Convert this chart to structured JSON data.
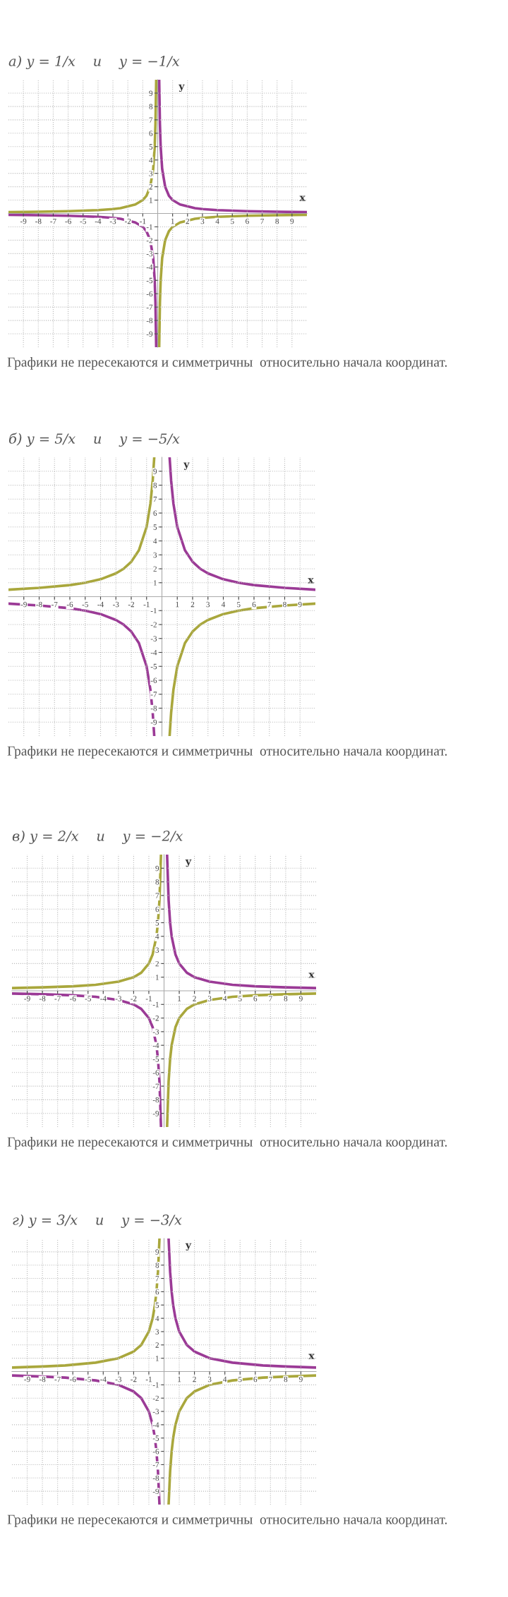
{
  "chart_data": [
    {
      "type": "line",
      "title": "а) y = 1/x    и    y = −1/x",
      "xlabel": "x",
      "ylabel": "y",
      "xlim": [
        -10,
        10
      ],
      "ylim": [
        -10,
        10
      ],
      "xticks": [
        -9,
        -8,
        -7,
        -6,
        -5,
        -4,
        -3,
        -2,
        -1,
        1,
        2,
        3,
        4,
        5,
        6,
        7,
        8,
        9
      ],
      "yticks": [
        -9,
        -8,
        -7,
        -6,
        -5,
        -4,
        -3,
        -2,
        -1,
        1,
        2,
        3,
        4,
        5,
        6,
        7,
        8,
        9
      ],
      "grid": true,
      "line_style": "solid",
      "marker": "none",
      "series": [
        {
          "color": "#9b3a96",
          "x": [
            -10,
            -8,
            -6,
            -4,
            -3,
            -2.5,
            -1.5,
            -1,
            -0.75,
            -0.5,
            -0.3,
            -0.2,
            -0.15,
            -0.1,
            null,
            0.1,
            0.15,
            0.2,
            0.3,
            0.5,
            0.75,
            1,
            1.5,
            2.5,
            3,
            4,
            6,
            8,
            10
          ],
          "values": [
            -0.1,
            -0.13,
            -0.17,
            -0.25,
            -0.33,
            -0.4,
            -0.67,
            -1,
            -1.33,
            -2,
            -3.33,
            -5,
            -6.67,
            -10,
            null,
            10,
            6.67,
            5,
            3.33,
            2,
            1.33,
            1,
            0.67,
            0.4,
            0.33,
            0.25,
            0.17,
            0.13,
            0.1
          ]
        },
        {
          "color": "#a9a73c",
          "x": [
            -10,
            -8,
            -6,
            -4,
            -3,
            -2.5,
            -1.5,
            -1,
            -0.75,
            -0.5,
            -0.3,
            -0.2,
            -0.15,
            -0.1,
            null,
            0.1,
            0.15,
            0.2,
            0.3,
            0.5,
            0.75,
            1,
            1.5,
            2.5,
            3,
            4,
            6,
            8,
            10
          ],
          "values": [
            0.1,
            0.13,
            0.17,
            0.25,
            0.33,
            0.4,
            0.67,
            1,
            1.33,
            2,
            3.33,
            5,
            6.67,
            10,
            null,
            -10,
            -6.67,
            -5,
            -3.33,
            -2,
            -1.33,
            -1,
            -0.67,
            -0.4,
            -0.33,
            -0.25,
            -0.17,
            -0.13,
            -0.1
          ]
        }
      ],
      "annotations": [
        "Графики не пересекаются и симметричны  относительно начала координат."
      ]
    },
    {
      "type": "line",
      "title": "б) y = 5/x    и    y = −5/x",
      "xlabel": "x",
      "ylabel": "y",
      "xlim": [
        -10,
        10
      ],
      "ylim": [
        -10,
        10
      ],
      "xticks": [
        -9,
        -8,
        -7,
        -6,
        -5,
        -4,
        -3,
        -2,
        -1,
        1,
        2,
        3,
        4,
        5,
        6,
        7,
        8,
        9
      ],
      "yticks": [
        -9,
        -8,
        -7,
        -6,
        -5,
        -4,
        -3,
        -2,
        -1,
        1,
        2,
        3,
        4,
        5,
        6,
        7,
        8,
        9
      ],
      "grid": true,
      "line_style": "solid",
      "marker": "none",
      "series": [
        {
          "color": "#9b3a96",
          "x": [
            -10,
            -8,
            -6,
            -5,
            -4,
            -3,
            -2.5,
            -2,
            -1.5,
            -1,
            -0.75,
            -0.6,
            -0.5,
            null,
            0.5,
            0.6,
            0.75,
            1,
            1.5,
            2,
            2.5,
            3,
            4,
            5,
            6,
            8,
            10
          ],
          "values": [
            -0.5,
            -0.63,
            -0.83,
            -1,
            -1.25,
            -1.67,
            -2,
            -2.5,
            -3.33,
            -5,
            -6.67,
            -8.33,
            -10,
            null,
            10,
            8.33,
            6.67,
            5,
            3.33,
            2.5,
            2,
            1.67,
            1.25,
            1,
            0.83,
            0.63,
            0.5
          ]
        },
        {
          "color": "#a9a73c",
          "x": [
            -10,
            -8,
            -6,
            -5,
            -4,
            -3,
            -2.5,
            -2,
            -1.5,
            -1,
            -0.75,
            -0.6,
            -0.5,
            null,
            0.5,
            0.6,
            0.75,
            1,
            1.5,
            2,
            2.5,
            3,
            4,
            5,
            6,
            8,
            10
          ],
          "values": [
            0.5,
            0.63,
            0.83,
            1,
            1.25,
            1.67,
            2,
            2.5,
            3.33,
            5,
            6.67,
            8.33,
            10,
            null,
            -10,
            -8.33,
            -6.67,
            -5,
            -3.33,
            -2.5,
            -2,
            -1.67,
            -1.25,
            -1,
            -0.83,
            -0.63,
            -0.5
          ]
        }
      ],
      "annotations": [
        "Графики не пересекаются и симметричны  относительно начала координат."
      ]
    },
    {
      "type": "line",
      "title": "в) y = 2/x    и    y = −2/x",
      "xlabel": "x",
      "ylabel": "y",
      "xlim": [
        -10,
        10
      ],
      "ylim": [
        -10,
        10
      ],
      "xticks": [
        -9,
        -8,
        -7,
        -6,
        -5,
        -4,
        -3,
        -2,
        -1,
        1,
        2,
        3,
        4,
        5,
        6,
        7,
        8,
        9
      ],
      "yticks": [
        -9,
        -8,
        -7,
        -6,
        -5,
        -4,
        -3,
        -2,
        -1,
        1,
        2,
        3,
        4,
        5,
        6,
        7,
        8,
        9
      ],
      "grid": true,
      "line_style": "solid",
      "marker": "none",
      "series": [
        {
          "color": "#9b3a96",
          "x": [
            -10,
            -8,
            -6,
            -4.5,
            -3,
            -2,
            -1.5,
            -1,
            -0.75,
            -0.5,
            -0.4,
            -0.3,
            -0.2,
            null,
            0.2,
            0.3,
            0.4,
            0.5,
            0.75,
            1,
            1.5,
            2,
            3,
            4.5,
            6,
            8,
            10
          ],
          "values": [
            -0.2,
            -0.25,
            -0.33,
            -0.44,
            -0.67,
            -1,
            -1.33,
            -2,
            -2.67,
            -4,
            -5,
            -6.67,
            -10,
            null,
            10,
            6.67,
            5,
            4,
            2.67,
            2,
            1.33,
            1,
            0.67,
            0.44,
            0.33,
            0.25,
            0.2
          ]
        },
        {
          "color": "#a9a73c",
          "x": [
            -10,
            -8,
            -6,
            -4.5,
            -3,
            -2,
            -1.5,
            -1,
            -0.75,
            -0.5,
            -0.4,
            -0.3,
            -0.2,
            null,
            0.2,
            0.3,
            0.4,
            0.5,
            0.75,
            1,
            1.5,
            2,
            3,
            4.5,
            6,
            8,
            10
          ],
          "values": [
            0.2,
            0.25,
            0.33,
            0.44,
            0.67,
            1,
            1.33,
            2,
            2.67,
            4,
            5,
            6.67,
            10,
            null,
            -10,
            -6.67,
            -5,
            -4,
            -2.67,
            -2,
            -1.33,
            -1,
            -0.67,
            -0.44,
            -0.33,
            -0.25,
            -0.2
          ]
        }
      ],
      "annotations": [
        "Графики не пересекаются и симметричны  относительно начала координат."
      ]
    },
    {
      "type": "line",
      "title": "г) y = 3/x    и    y = −3/x",
      "xlabel": "x",
      "ylabel": "y",
      "xlim": [
        -10,
        10
      ],
      "ylim": [
        -10,
        10
      ],
      "xticks": [
        -9,
        -8,
        -7,
        -6,
        -5,
        -4,
        -3,
        -2,
        -1,
        1,
        2,
        3,
        4,
        5,
        6,
        7,
        8,
        9
      ],
      "yticks": [
        -9,
        -8,
        -7,
        -6,
        -5,
        -4,
        -3,
        -2,
        -1,
        1,
        2,
        3,
        4,
        5,
        6,
        7,
        8,
        9
      ],
      "grid": true,
      "line_style": "solid",
      "marker": "none",
      "series": [
        {
          "color": "#9b3a96",
          "x": [
            -10,
            -8,
            -6.5,
            -4.5,
            -3,
            -2,
            -1.5,
            -1,
            -0.75,
            -0.6,
            -0.5,
            -0.4,
            -0.3,
            null,
            0.3,
            0.4,
            0.5,
            0.6,
            0.75,
            1,
            1.5,
            2,
            3,
            4.5,
            6.5,
            8,
            10
          ],
          "values": [
            -0.3,
            -0.38,
            -0.46,
            -0.67,
            -1,
            -1.5,
            -2,
            -3,
            -4,
            -5,
            -6,
            -7.5,
            -10,
            null,
            10,
            7.5,
            6,
            5,
            4,
            3,
            2,
            1.5,
            1,
            0.67,
            0.46,
            0.38,
            0.3
          ]
        },
        {
          "color": "#a9a73c",
          "x": [
            -10,
            -8,
            -6.5,
            -4.5,
            -3,
            -2,
            -1.5,
            -1,
            -0.75,
            -0.6,
            -0.5,
            -0.4,
            -0.3,
            null,
            0.3,
            0.4,
            0.5,
            0.6,
            0.75,
            1,
            1.5,
            2,
            3,
            4.5,
            6.5,
            8,
            10
          ],
          "values": [
            0.3,
            0.38,
            0.46,
            0.67,
            1,
            1.5,
            2,
            3,
            4,
            5,
            6,
            7.5,
            10,
            null,
            -10,
            -7.5,
            -6,
            -5,
            -4,
            -3,
            -2,
            -1.5,
            -1,
            -0.67,
            -0.46,
            -0.38,
            -0.3
          ]
        }
      ],
      "annotations": [
        "Графики не пересекаются и симметричны  относительно начала координат."
      ]
    }
  ]
}
